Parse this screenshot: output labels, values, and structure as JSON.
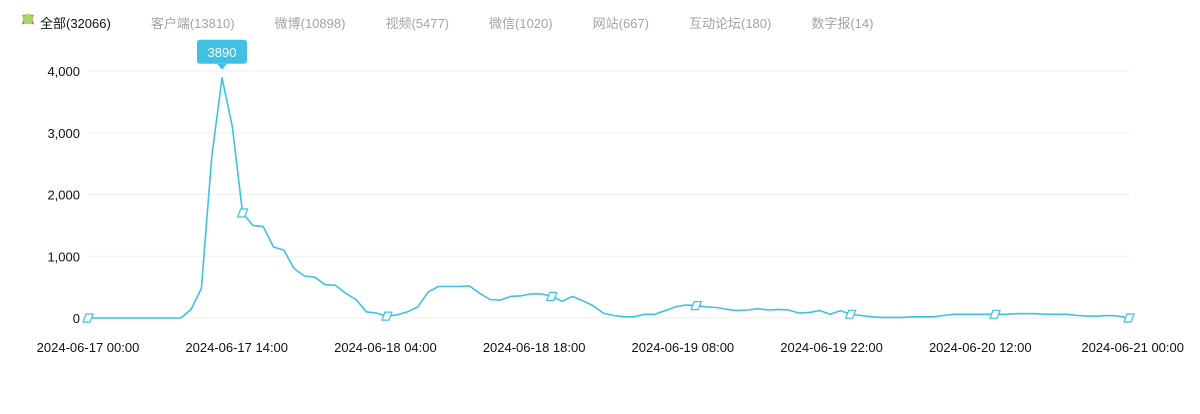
{
  "legend": {
    "items": [
      {
        "label": "全部(32066)",
        "icon": "parallelogram-icon",
        "color": "#3fc1e3",
        "active": true
      },
      {
        "label": "客户端(13810)",
        "icon": "circle-icon",
        "color": "#6fa8ff",
        "active": false
      },
      {
        "label": "微博(10898)",
        "icon": "square-icon",
        "color": "#f0a13a",
        "active": false
      },
      {
        "label": "视频(5477)",
        "icon": "trapezoid-down-icon",
        "color": "#f07a7a",
        "active": false
      },
      {
        "label": "微信(1020)",
        "icon": "triangle-icon",
        "color": "#4fc38f",
        "active": false
      },
      {
        "label": "网站(667)",
        "icon": "arrow-triangle-icon",
        "color": "#6b7fc1",
        "active": false
      },
      {
        "label": "互动论坛(180)",
        "icon": "trapezoid-up-icon",
        "color": "#e36fb0",
        "active": false
      },
      {
        "label": "数字报(14)",
        "icon": "pentagon-icon",
        "color": "#a6d86a",
        "active": false
      }
    ]
  },
  "chart_data": {
    "type": "line",
    "series": [
      {
        "name": "全部(32066)",
        "color": "#3fc1e3",
        "values": [
          0,
          0,
          0,
          0,
          0,
          0,
          0,
          0,
          0,
          0,
          140,
          480,
          2600,
          3890,
          3100,
          1700,
          1500,
          1480,
          1150,
          1100,
          800,
          680,
          660,
          540,
          530,
          400,
          300,
          100,
          80,
          30,
          50,
          100,
          180,
          420,
          510,
          510,
          510,
          520,
          400,
          300,
          290,
          350,
          360,
          390,
          390,
          350,
          270,
          350,
          280,
          200,
          80,
          40,
          20,
          20,
          60,
          60,
          120,
          180,
          210,
          200,
          180,
          170,
          140,
          120,
          130,
          150,
          130,
          140,
          130,
          80,
          90,
          120,
          60,
          120,
          60,
          40,
          20,
          10,
          10,
          10,
          20,
          20,
          20,
          40,
          60,
          60,
          60,
          60,
          60,
          60,
          70,
          70,
          70,
          60,
          60,
          60,
          40,
          30,
          30,
          40,
          30,
          0
        ],
        "markers": [
          0,
          15,
          29,
          45,
          59,
          74,
          88,
          101
        ]
      }
    ],
    "x_labels": [
      "2024-06-17 00:00",
      "2024-06-17 14:00",
      "2024-06-18 04:00",
      "2024-06-18 18:00",
      "2024-06-19 08:00",
      "2024-06-19 22:00",
      "2024-06-20 12:00",
      "2024-06-21 00:00"
    ],
    "y_ticks": [
      "0",
      "1,000",
      "2,000",
      "3,000",
      "4,000"
    ],
    "y_tick_values": [
      0,
      1000,
      2000,
      3000,
      4000
    ],
    "ylim": [
      0,
      4000
    ],
    "grid": true,
    "tooltip": {
      "label": "3890",
      "value": 3890,
      "index": 13
    }
  }
}
